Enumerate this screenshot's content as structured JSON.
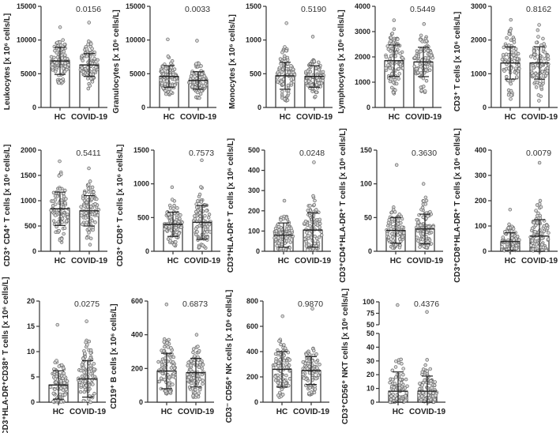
{
  "chart_data": [
    {
      "type": "bar",
      "title": "",
      "ylabel": "Leukocytes [x 10⁶ cells/L]",
      "p_value": "0.0156",
      "ylim": [
        0,
        15000
      ],
      "yticks": [
        0,
        5000,
        10000,
        15000
      ],
      "categories": [
        "HC",
        "COVID-19"
      ],
      "series": [
        {
          "name": "HC",
          "mean": 6900,
          "sd": 2000,
          "min": 3600,
          "max": 11900
        },
        {
          "name": "COVID-19",
          "mean": 6300,
          "sd": 1700,
          "min": 2800,
          "max": 12600
        }
      ]
    },
    {
      "type": "bar",
      "ylabel": "Granulocytes [x 10⁶ cells/L]",
      "p_value": "0.0033",
      "ylim": [
        0,
        15000
      ],
      "yticks": [
        0,
        5000,
        10000,
        15000
      ],
      "categories": [
        "HC",
        "COVID-19"
      ],
      "series": [
        {
          "name": "HC",
          "mean": 4600,
          "sd": 1600,
          "min": 1900,
          "max": 10100
        },
        {
          "name": "COVID-19",
          "mean": 4000,
          "sd": 1300,
          "min": 1400,
          "max": 9900
        }
      ]
    },
    {
      "type": "bar",
      "ylabel": "Monocytes [x 10⁶ cells/L]",
      "p_value": "0.5190",
      "ylim": [
        0,
        1500
      ],
      "yticks": [
        0,
        500,
        1000,
        1500
      ],
      "categories": [
        "HC",
        "COVID-19"
      ],
      "series": [
        {
          "name": "HC",
          "mean": 470,
          "sd": 200,
          "min": 100,
          "max": 1250
        },
        {
          "name": "COVID-19",
          "mean": 460,
          "sd": 160,
          "min": 150,
          "max": 1050
        }
      ]
    },
    {
      "type": "bar",
      "ylabel": "Lymphocytes [x 10⁶ cells/L]",
      "p_value": "0.5449",
      "ylim": [
        0,
        4000
      ],
      "yticks": [
        0,
        1000,
        2000,
        3000,
        4000
      ],
      "categories": [
        "HC",
        "COVID-19"
      ],
      "series": [
        {
          "name": "HC",
          "mean": 1850,
          "sd": 620,
          "min": 550,
          "max": 3450
        },
        {
          "name": "COVID-19",
          "mean": 1800,
          "sd": 580,
          "min": 600,
          "max": 3300
        }
      ]
    },
    {
      "type": "bar",
      "ylabel": "CD3⁺ T cells [x 10⁶ cells/L]",
      "p_value": "0.8162",
      "ylim": [
        0,
        3000
      ],
      "yticks": [
        0,
        1000,
        2000,
        3000
      ],
      "categories": [
        "HC",
        "COVID-19"
      ],
      "series": [
        {
          "name": "HC",
          "mean": 1320,
          "sd": 480,
          "min": 250,
          "max": 2600
        },
        {
          "name": "COVID-19",
          "mean": 1320,
          "sd": 480,
          "min": 200,
          "max": 2450
        }
      ]
    },
    {
      "type": "bar",
      "ylabel": "CD3⁺ CD4⁺ T cells [x 10⁶ cells/L]",
      "p_value": "0.5411",
      "ylim": [
        0,
        2000
      ],
      "yticks": [
        0,
        500,
        1000,
        1500,
        2000
      ],
      "categories": [
        "HC",
        "COVID-19"
      ],
      "series": [
        {
          "name": "HC",
          "mean": 840,
          "sd": 330,
          "min": 180,
          "max": 1780
        },
        {
          "name": "COVID-19",
          "mean": 800,
          "sd": 300,
          "min": 130,
          "max": 1640
        }
      ]
    },
    {
      "type": "bar",
      "ylabel": "CD3⁺ CD8⁺ T cells [x 10⁶ cells/L]",
      "p_value": "0.7573",
      "ylim": [
        0,
        1500
      ],
      "yticks": [
        0,
        500,
        1000,
        1500
      ],
      "categories": [
        "HC",
        "COVID-19"
      ],
      "series": [
        {
          "name": "HC",
          "mean": 400,
          "sd": 180,
          "min": 80,
          "max": 950
        },
        {
          "name": "COVID-19",
          "mean": 430,
          "sd": 250,
          "min": 50,
          "max": 1350
        }
      ]
    },
    {
      "type": "bar",
      "ylabel": "CD3⁺HLA-DR⁺ T cells [x 10⁶ cells/L]",
      "p_value": "0.0248",
      "ylim": [
        0,
        500
      ],
      "yticks": [
        0,
        100,
        200,
        300,
        400,
        500
      ],
      "categories": [
        "HC",
        "COVID-19"
      ],
      "series": [
        {
          "name": "HC",
          "mean": 80,
          "sd": 60,
          "min": 5,
          "max": 250
        },
        {
          "name": "COVID-19",
          "mean": 105,
          "sd": 85,
          "min": 5,
          "max": 440
        }
      ]
    },
    {
      "type": "bar",
      "ylabel": "CD3⁺CD4⁺HLA-DR⁺ T cells [x 10⁶ cells/L]",
      "p_value": "0.3630",
      "ylim": [
        0,
        150
      ],
      "yticks": [
        0,
        50,
        100,
        150
      ],
      "categories": [
        "HC",
        "COVID-19"
      ],
      "series": [
        {
          "name": "HC",
          "mean": 31,
          "sd": 19,
          "min": 5,
          "max": 128
        },
        {
          "name": "COVID-19",
          "mean": 33,
          "sd": 22,
          "min": 5,
          "max": 100
        }
      ]
    },
    {
      "type": "bar",
      "ylabel": "CD3⁺CD8⁺HLA-DR⁺ T cells [x 10⁶ cells/L]",
      "p_value": "0.0079",
      "ylim": [
        0,
        400
      ],
      "yticks": [
        0,
        100,
        200,
        300,
        400
      ],
      "categories": [
        "HC",
        "COVID-19"
      ],
      "series": [
        {
          "name": "HC",
          "mean": 38,
          "sd": 35,
          "min": 2,
          "max": 165
        },
        {
          "name": "COVID-19",
          "mean": 60,
          "sd": 65,
          "min": 2,
          "max": 350
        }
      ]
    },
    {
      "type": "bar",
      "ylabel": "CD3⁺HLA-DR⁺CD38⁺ T cells [x 10⁶ cells/L]",
      "p_value": "0.0275",
      "ylim": [
        0,
        20
      ],
      "yticks": [
        0,
        5,
        10,
        15,
        20
      ],
      "categories": [
        "HC",
        "COVID-19"
      ],
      "series": [
        {
          "name": "HC",
          "mean": 3.4,
          "sd": 2.8,
          "min": 0,
          "max": 15.3
        },
        {
          "name": "COVID-19",
          "mean": 4.6,
          "sd": 3.6,
          "min": 0,
          "max": 16
        }
      ]
    },
    {
      "type": "bar",
      "ylabel": "CD19⁺ B cells [x 10⁶ cells/L]",
      "p_value": "0.6873",
      "ylim": [
        0,
        600
      ],
      "yticks": [
        0,
        200,
        400,
        600
      ],
      "categories": [
        "HC",
        "COVID-19"
      ],
      "series": [
        {
          "name": "HC",
          "mean": 185,
          "sd": 105,
          "min": 50,
          "max": 580
        },
        {
          "name": "COVID-19",
          "mean": 175,
          "sd": 85,
          "min": 30,
          "max": 400
        }
      ]
    },
    {
      "type": "bar",
      "ylabel": "CD3⁻ CD56⁺ NK cells [x 10⁶ cells/L]",
      "p_value": "0.9870",
      "ylim": [
        0,
        800
      ],
      "yticks": [
        0,
        200,
        400,
        600,
        800
      ],
      "categories": [
        "HC",
        "COVID-19"
      ],
      "series": [
        {
          "name": "HC",
          "mean": 260,
          "sd": 140,
          "min": 40,
          "max": 680
        },
        {
          "name": "COVID-19",
          "mean": 250,
          "sd": 110,
          "min": 60,
          "max": 740
        }
      ]
    },
    {
      "type": "bar",
      "ylabel": "CD3⁺CD56⁺ NKT cells [x 10⁶ cells/L]",
      "p_value": "0.4376",
      "ylim": [
        0,
        100
      ],
      "axis_break": [
        50,
        50
      ],
      "yticks": [
        0,
        10,
        20,
        30,
        40,
        50
      ],
      "yticks_upper": [
        50,
        75,
        100
      ],
      "categories": [
        "HC",
        "COVID-19"
      ],
      "series": [
        {
          "name": "HC",
          "mean": 8,
          "sd": 14,
          "min": 0,
          "max": 93
        },
        {
          "name": "COVID-19",
          "mean": 8,
          "sd": 11,
          "min": 0,
          "max": 78
        }
      ]
    }
  ]
}
